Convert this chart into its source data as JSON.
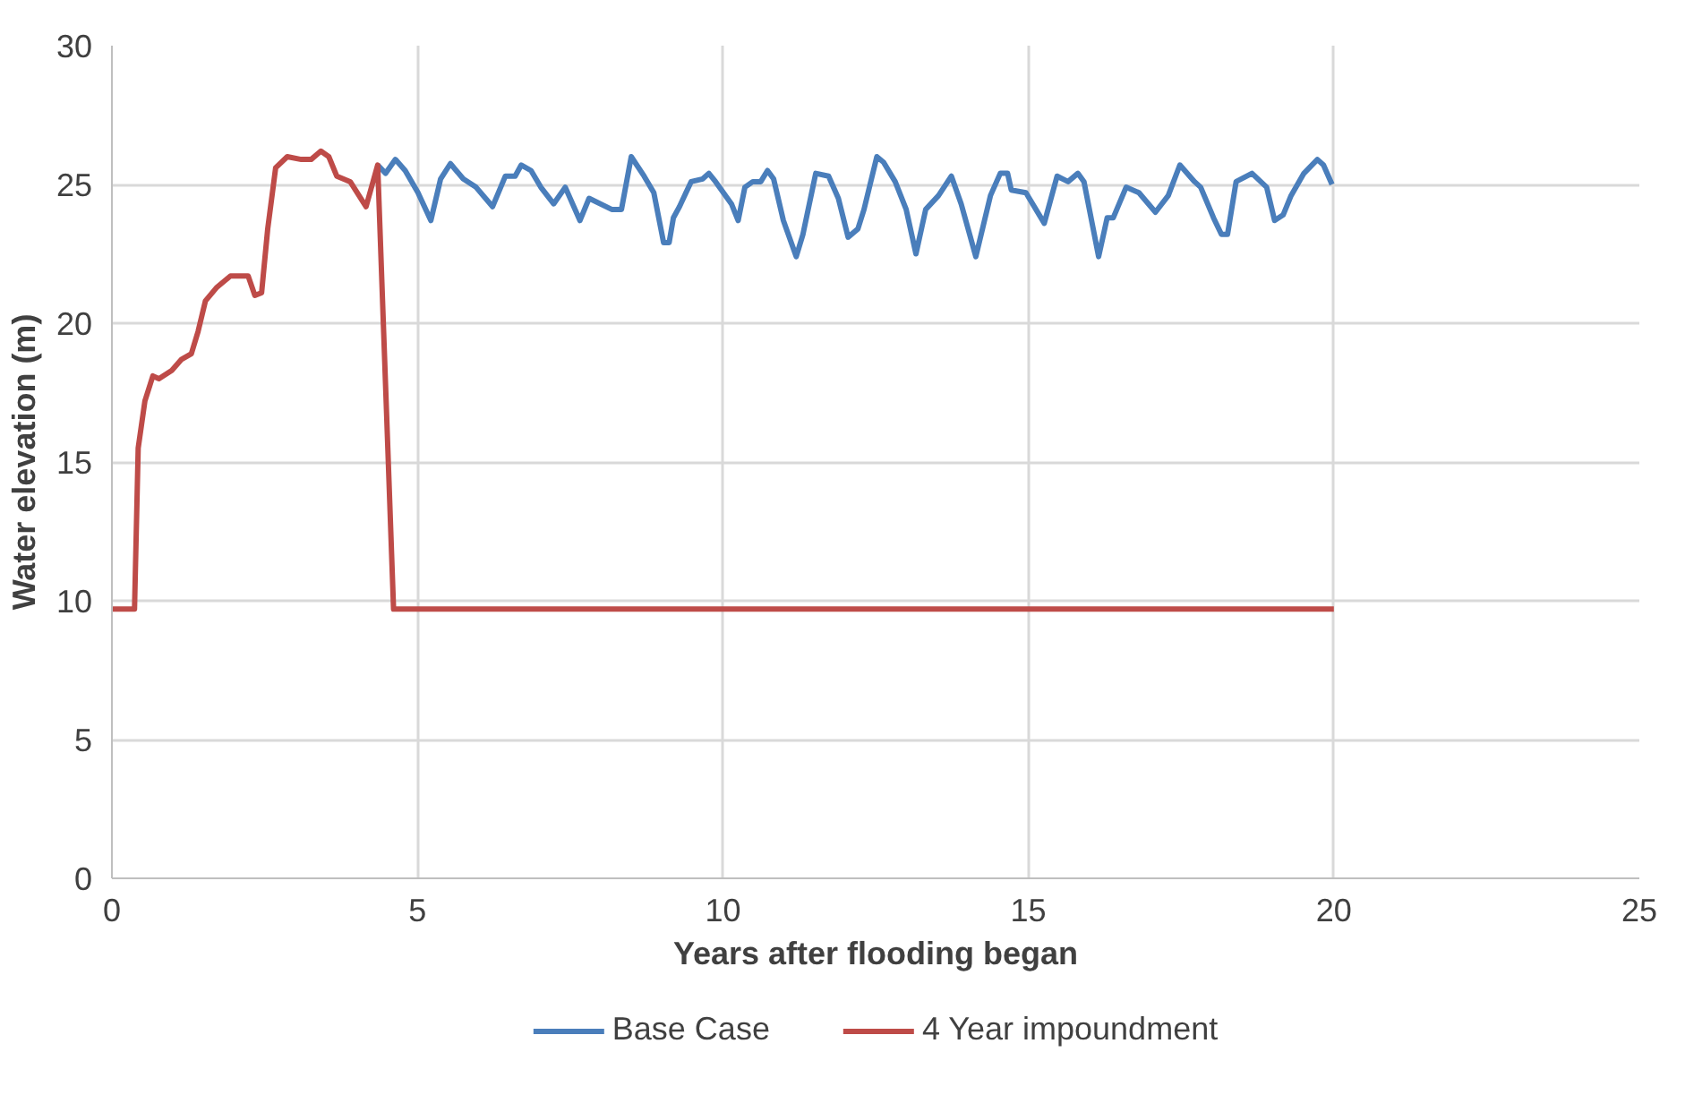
{
  "chart_data": {
    "type": "line",
    "xlabel": "Years after flooding began",
    "ylabel": "Water elevation (m)",
    "xlim": [
      0,
      25
    ],
    "ylim": [
      0,
      30
    ],
    "xticks": [
      0,
      5,
      10,
      15,
      20,
      25
    ],
    "yticks": [
      0,
      5,
      10,
      15,
      20,
      25,
      30
    ],
    "grid": true,
    "legend": "bottom",
    "marker": "none",
    "line_style": "solid",
    "series": [
      {
        "name": "Base Case",
        "color": "#4a7ebb",
        "x": [
          4.35,
          4.48,
          4.64,
          4.8,
          5.01,
          5.22,
          5.38,
          5.54,
          5.75,
          5.96,
          6.23,
          6.44,
          6.6,
          6.7,
          6.86,
          7.02,
          7.23,
          7.42,
          7.66,
          7.81,
          8.18,
          8.34,
          8.5,
          8.71,
          8.87,
          9.03,
          9.12,
          9.19,
          9.29,
          9.48,
          9.67,
          9.77,
          9.88,
          10.14,
          10.25,
          10.36,
          10.49,
          10.62,
          10.73,
          10.83,
          10.99,
          11.2,
          11.31,
          11.52,
          11.73,
          11.89,
          12.05,
          12.21,
          12.31,
          12.52,
          12.63,
          12.82,
          13.0,
          13.16,
          13.32,
          13.53,
          13.74,
          13.9,
          14.14,
          14.38,
          14.54,
          14.66,
          14.72,
          14.96,
          15.26,
          15.47,
          15.65,
          15.81,
          15.91,
          16.15,
          16.29,
          16.39,
          16.6,
          16.81,
          17.08,
          17.29,
          17.48,
          17.72,
          17.82,
          18.03,
          18.16,
          18.26,
          18.4,
          18.66,
          18.9,
          19.03,
          19.17,
          19.3,
          19.51,
          19.73,
          19.83,
          19.97
        ],
        "values": [
          25.7,
          25.4,
          25.9,
          25.5,
          24.7,
          23.7,
          25.2,
          25.75,
          25.2,
          24.9,
          24.2,
          25.3,
          25.3,
          25.7,
          25.5,
          24.9,
          24.3,
          24.9,
          23.7,
          24.5,
          24.1,
          24.1,
          26.0,
          25.3,
          24.7,
          22.9,
          22.9,
          23.8,
          24.2,
          25.1,
          25.2,
          25.4,
          25.1,
          24.3,
          23.7,
          24.9,
          25.1,
          25.1,
          25.5,
          25.2,
          23.7,
          22.4,
          23.2,
          25.4,
          25.3,
          24.5,
          23.1,
          23.4,
          24.1,
          26.0,
          25.8,
          25.1,
          24.1,
          22.5,
          24.1,
          24.6,
          25.3,
          24.3,
          22.4,
          24.6,
          25.4,
          25.4,
          24.8,
          24.7,
          23.6,
          25.3,
          25.1,
          25.4,
          25.1,
          22.4,
          23.8,
          23.8,
          24.9,
          24.7,
          24.0,
          24.6,
          25.7,
          25.1,
          24.9,
          23.8,
          23.2,
          23.2,
          25.1,
          25.4,
          24.9,
          23.7,
          23.9,
          24.6,
          25.4,
          25.9,
          25.7,
          25.0
        ]
      },
      {
        "name": "4 Year impoundment",
        "color": "#be4b48",
        "x": [
          0,
          0.37,
          0.43,
          0.54,
          0.67,
          0.77,
          0.98,
          1.14,
          1.3,
          1.41,
          1.53,
          1.72,
          1.94,
          2.23,
          2.34,
          2.45,
          2.55,
          2.68,
          2.87,
          3.1,
          3.26,
          3.42,
          3.55,
          3.68,
          3.9,
          4.16,
          4.35,
          4.61,
          20
        ],
        "values": [
          9.7,
          9.7,
          15.5,
          17.2,
          18.1,
          18.0,
          18.3,
          18.7,
          18.9,
          19.7,
          20.8,
          21.3,
          21.7,
          21.7,
          21.0,
          21.1,
          23.4,
          25.6,
          26.0,
          25.9,
          25.9,
          26.2,
          26.0,
          25.3,
          25.1,
          24.2,
          25.7,
          9.7,
          9.7
        ]
      }
    ]
  }
}
